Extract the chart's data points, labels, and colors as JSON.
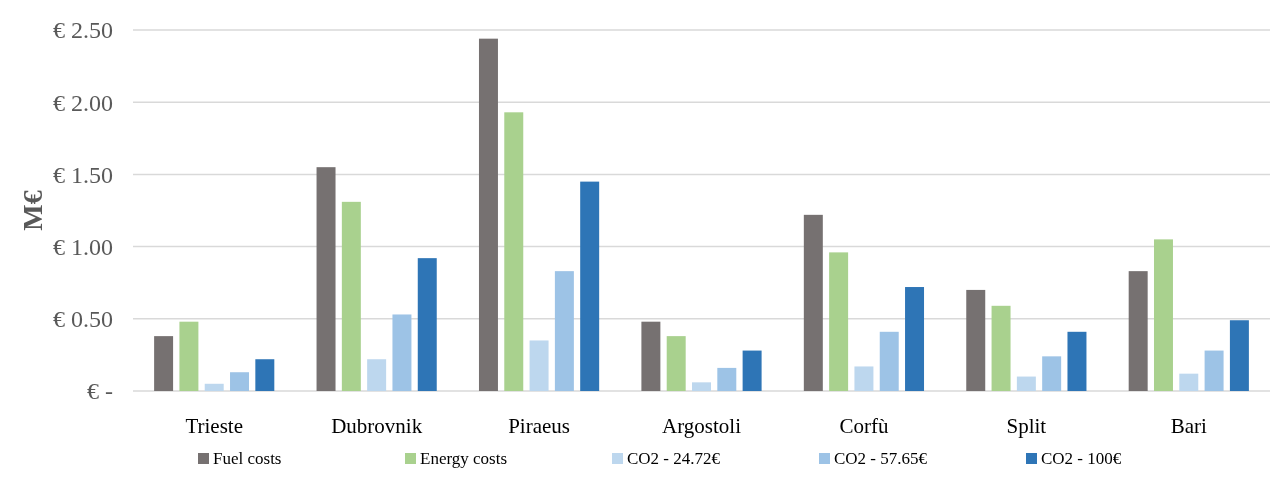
{
  "chart_data": {
    "type": "bar",
    "ylabel": "M€",
    "categories": [
      "Trieste",
      "Dubrovnik",
      "Piraeus",
      "Argostoli",
      "Corfù",
      "Split",
      "Bari"
    ],
    "series": [
      {
        "name": "Fuel costs",
        "color": "#767171",
        "values": [
          0.38,
          1.55,
          2.44,
          0.48,
          1.22,
          0.7,
          0.83
        ]
      },
      {
        "name": "Energy costs",
        "color": "#a9d18e",
        "values": [
          0.48,
          1.31,
          1.93,
          0.38,
          0.96,
          0.59,
          1.05
        ]
      },
      {
        "name": "CO2 - 24.72€",
        "color": "#bdd7ee",
        "values": [
          0.05,
          0.22,
          0.35,
          0.06,
          0.17,
          0.1,
          0.12
        ]
      },
      {
        "name": "CO2 - 57.65€",
        "color": "#9dc3e6",
        "values": [
          0.13,
          0.53,
          0.83,
          0.16,
          0.41,
          0.24,
          0.28
        ]
      },
      {
        "name": "CO2 - 100€",
        "color": "#2e75b6",
        "values": [
          0.22,
          0.92,
          1.45,
          0.28,
          0.72,
          0.41,
          0.49
        ]
      }
    ],
    "ylim": [
      0,
      2.5
    ],
    "yticks": [
      {
        "value": 0,
        "label": "€ -"
      },
      {
        "value": 0.5,
        "label": "€ 0.50"
      },
      {
        "value": 1,
        "label": "€ 1.00"
      },
      {
        "value": 1.5,
        "label": "€ 1.50"
      },
      {
        "value": 2,
        "label": "€ 2.00"
      },
      {
        "value": 2.5,
        "label": "€ 2.50"
      }
    ],
    "grid": "y",
    "legend": "bottom"
  }
}
